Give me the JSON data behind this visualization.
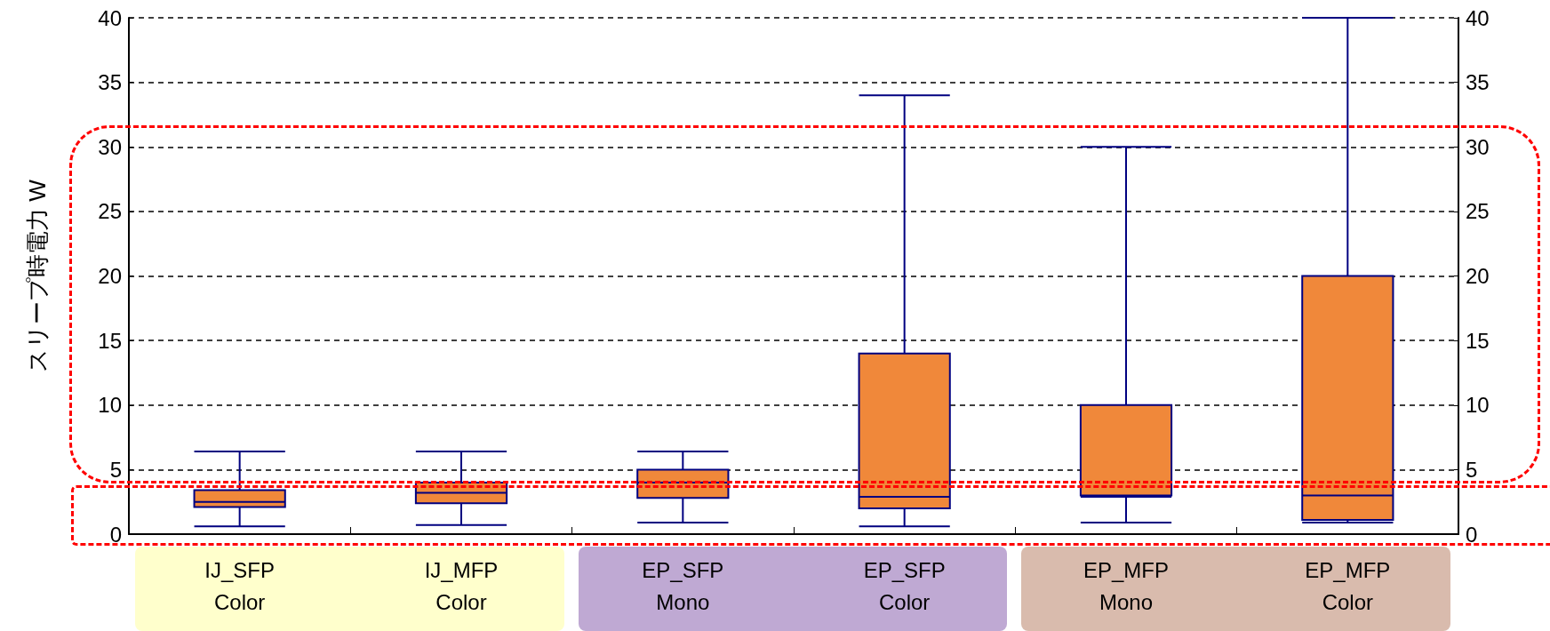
{
  "chart_data": {
    "type": "box",
    "ylabel": "スリープ時電力 W",
    "categories": [
      "IJ_SFP\nColor",
      "IJ_MFP\nColor",
      "EP_SFP\nMono",
      "EP_SFP\nColor",
      "EP_MFP\nMono",
      "EP_MFP\nColor"
    ],
    "series": [
      {
        "color": "#f0883a",
        "boxes": [
          {
            "low": 0.6,
            "q1": 2.1,
            "median": 2.5,
            "q3": 3.4,
            "high": 6.4
          },
          {
            "low": 0.7,
            "q1": 2.4,
            "median": 3.2,
            "q3": 4.0,
            "high": 6.4
          },
          {
            "low": 0.9,
            "q1": 2.8,
            "median": 4.0,
            "q3": 5.0,
            "high": 6.4
          },
          {
            "low": 0.6,
            "q1": 2.0,
            "median": 2.9,
            "q3": 14.0,
            "high": 34
          },
          {
            "low": 0.9,
            "q1": 3.0,
            "median": 2.9,
            "q3": 10.0,
            "high": 30
          },
          {
            "low": 0.9,
            "q1": 1.1,
            "median": 3.0,
            "q3": 20.0,
            "high": 40
          }
        ]
      }
    ],
    "ylim": [
      0,
      40
    ],
    "yticks": [
      0,
      5,
      10,
      15,
      20,
      25,
      30,
      35,
      40
    ],
    "y2lim": [
      0,
      40
    ],
    "y2ticks": [
      0,
      5,
      10,
      15,
      20,
      25,
      30,
      35,
      40
    ],
    "grid": "y"
  }
}
